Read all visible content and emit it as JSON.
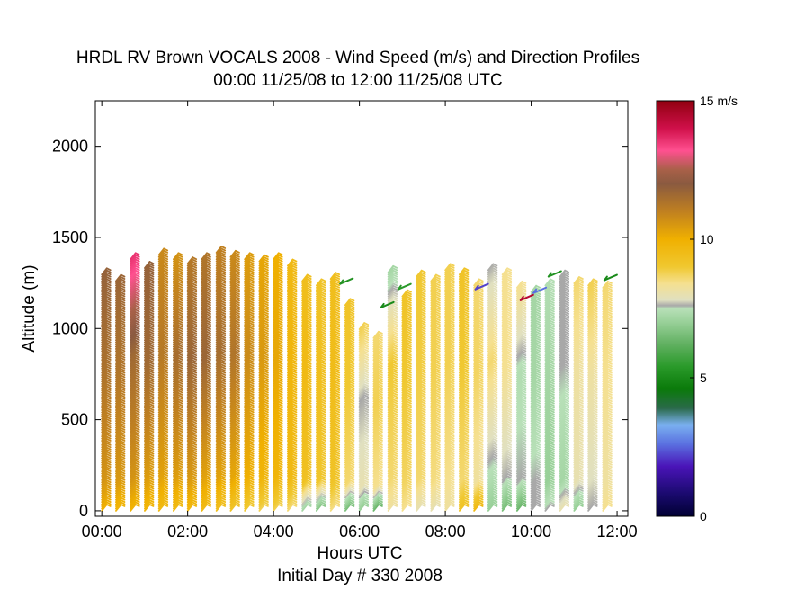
{
  "chart_data": {
    "type": "wind-profile",
    "title_line1": "HRDL RV Brown VOCALS 2008 - Wind Speed (m/s) and Direction Profiles",
    "title_line2": "00:00 11/25/08 to 12:00 11/25/08  UTC",
    "xlabel": "Hours UTC",
    "xlabel2": "Initial Day # 330  2008",
    "ylabel": "Altitude (m)",
    "x_range_hours": [
      -0.15,
      12.25
    ],
    "y_range_m": [
      -30,
      2250
    ],
    "x_ticks": [
      {
        "hour": 0,
        "label": "00:00"
      },
      {
        "hour": 2,
        "label": "02:00"
      },
      {
        "hour": 4,
        "label": "04:00"
      },
      {
        "hour": 6,
        "label": "06:00"
      },
      {
        "hour": 8,
        "label": "08:00"
      },
      {
        "hour": 10,
        "label": "10:00"
      },
      {
        "hour": 12,
        "label": "12:00"
      }
    ],
    "y_ticks": [
      {
        "value": 0,
        "label": "0"
      },
      {
        "value": 500,
        "label": "500"
      },
      {
        "value": 1000,
        "label": "1000"
      },
      {
        "value": 1500,
        "label": "1500"
      },
      {
        "value": 2000,
        "label": "2000"
      }
    ],
    "colorbar": {
      "range_ms": [
        0,
        15
      ],
      "ticks": [
        {
          "value": 15,
          "label": "15 m/s"
        },
        {
          "value": 10,
          "label": "10"
        },
        {
          "value": 5,
          "label": "5"
        },
        {
          "value": 0,
          "label": "0"
        }
      ],
      "stops": [
        {
          "v": 0.0,
          "color": "#000033"
        },
        {
          "v": 0.8,
          "color": "#1a0a6e"
        },
        {
          "v": 1.8,
          "color": "#4a14b8"
        },
        {
          "v": 2.6,
          "color": "#5a70e0"
        },
        {
          "v": 3.3,
          "color": "#7ab0f0"
        },
        {
          "v": 3.9,
          "color": "#2a6a4a"
        },
        {
          "v": 4.6,
          "color": "#0a7a0a"
        },
        {
          "v": 5.4,
          "color": "#2a9a2a"
        },
        {
          "v": 6.2,
          "color": "#60b060"
        },
        {
          "v": 7.0,
          "color": "#98d098"
        },
        {
          "v": 7.5,
          "color": "#b8e0b8"
        },
        {
          "v": 7.6,
          "color": "#a8a8a8"
        },
        {
          "v": 7.8,
          "color": "#e0e0c0"
        },
        {
          "v": 8.4,
          "color": "#f5e090"
        },
        {
          "v": 9.0,
          "color": "#f0c830"
        },
        {
          "v": 10.0,
          "color": "#f0b000"
        },
        {
          "v": 11.0,
          "color": "#c08020"
        },
        {
          "v": 12.0,
          "color": "#8a5a40"
        },
        {
          "v": 12.5,
          "color": "#a86048"
        },
        {
          "v": 13.2,
          "color": "#ff5090"
        },
        {
          "v": 14.0,
          "color": "#d0104a"
        },
        {
          "v": 15.0,
          "color": "#900010"
        }
      ]
    },
    "profiles": [
      {
        "hour": 0.0,
        "top": 1300,
        "upper_speed": 11.8,
        "mid_speed": 11.4,
        "low_speed": 10.6,
        "surface_speed": 10.0
      },
      {
        "hour": 0.33,
        "top": 1270,
        "upper_speed": 11.7,
        "mid_speed": 11.3,
        "low_speed": 10.5,
        "surface_speed": 9.8
      },
      {
        "hour": 0.67,
        "top": 1390,
        "upper_speed": 13.6,
        "mid_speed": 11.6,
        "low_speed": 10.6,
        "surface_speed": 9.9
      },
      {
        "hour": 1.0,
        "top": 1340,
        "upper_speed": 11.8,
        "mid_speed": 11.6,
        "low_speed": 10.4,
        "surface_speed": 9.8
      },
      {
        "hour": 1.33,
        "top": 1410,
        "upper_speed": 10.8,
        "mid_speed": 11.2,
        "low_speed": 10.3,
        "surface_speed": 9.6
      },
      {
        "hour": 1.67,
        "top": 1390,
        "upper_speed": 10.6,
        "mid_speed": 11.5,
        "low_speed": 10.4,
        "surface_speed": 9.6
      },
      {
        "hour": 2.0,
        "top": 1360,
        "upper_speed": 11.2,
        "mid_speed": 11.7,
        "low_speed": 10.5,
        "surface_speed": 9.7
      },
      {
        "hour": 2.33,
        "top": 1380,
        "upper_speed": 11.3,
        "mid_speed": 11.7,
        "low_speed": 10.3,
        "surface_speed": 9.6
      },
      {
        "hour": 2.67,
        "top": 1420,
        "upper_speed": 11.0,
        "mid_speed": 11.5,
        "low_speed": 10.3,
        "surface_speed": 9.4
      },
      {
        "hour": 3.0,
        "top": 1400,
        "upper_speed": 10.8,
        "mid_speed": 11.3,
        "low_speed": 10.2,
        "surface_speed": 9.2
      },
      {
        "hour": 3.33,
        "top": 1390,
        "upper_speed": 10.4,
        "mid_speed": 10.8,
        "low_speed": 10.0,
        "surface_speed": 9.0
      },
      {
        "hour": 3.67,
        "top": 1370,
        "upper_speed": 10.2,
        "mid_speed": 10.5,
        "low_speed": 9.8,
        "surface_speed": 8.8
      },
      {
        "hour": 4.0,
        "top": 1380,
        "upper_speed": 10.0,
        "mid_speed": 10.2,
        "low_speed": 9.8,
        "surface_speed": 8.8
      },
      {
        "hour": 4.33,
        "top": 1350,
        "upper_speed": 9.6,
        "mid_speed": 9.8,
        "low_speed": 9.6,
        "surface_speed": 8.6
      },
      {
        "hour": 4.67,
        "top": 1260,
        "upper_speed": 9.4,
        "mid_speed": 9.6,
        "low_speed": 9.3,
        "surface_speed": 7.2
      },
      {
        "hour": 5.0,
        "top": 1240,
        "upper_speed": 9.2,
        "mid_speed": 9.4,
        "low_speed": 9.1,
        "surface_speed": 6.8
      },
      {
        "hour": 5.33,
        "top": 1280,
        "upper_speed": 9.4,
        "mid_speed": 9.5,
        "low_speed": 9.2,
        "surface_speed": 8.5
      },
      {
        "hour": 5.67,
        "top": 1130,
        "upper_speed": 9.2,
        "mid_speed": 9.0,
        "low_speed": 8.6,
        "surface_speed": 6.6
      },
      {
        "hour": 6.0,
        "top": 1000,
        "upper_speed": 8.8,
        "mid_speed": 7.6,
        "low_speed": 8.0,
        "surface_speed": 7.0
      },
      {
        "hour": 6.33,
        "top": 950,
        "upper_speed": 8.6,
        "mid_speed": 8.8,
        "low_speed": 8.4,
        "surface_speed": 6.4
      },
      {
        "hour": 6.67,
        "top": 1310,
        "upper_speed": 7.2,
        "mid_speed": 9.0,
        "low_speed": 8.6,
        "surface_speed": 8.2
      },
      {
        "hour": 7.0,
        "top": 1180,
        "upper_speed": 9.2,
        "mid_speed": 9.0,
        "low_speed": 8.7,
        "surface_speed": 8.4
      },
      {
        "hour": 7.33,
        "top": 1290,
        "upper_speed": 9.0,
        "mid_speed": 8.9,
        "low_speed": 8.6,
        "surface_speed": 8.0
      },
      {
        "hour": 7.67,
        "top": 1260,
        "upper_speed": 8.8,
        "mid_speed": 8.8,
        "low_speed": 8.5,
        "surface_speed": 8.0
      },
      {
        "hour": 8.0,
        "top": 1320,
        "upper_speed": 8.8,
        "mid_speed": 8.8,
        "low_speed": 8.4,
        "surface_speed": 8.2
      },
      {
        "hour": 8.33,
        "top": 1300,
        "upper_speed": 9.2,
        "mid_speed": 9.0,
        "low_speed": 8.6,
        "surface_speed": 9.2
      },
      {
        "hour": 8.67,
        "top": 1240,
        "upper_speed": 8.6,
        "mid_speed": 8.7,
        "low_speed": 8.2,
        "surface_speed": 9.6
      },
      {
        "hour": 9.0,
        "top": 1330,
        "upper_speed": 7.6,
        "mid_speed": 8.6,
        "low_speed": 7.4,
        "surface_speed": 7.0
      },
      {
        "hour": 9.33,
        "top": 1300,
        "upper_speed": 8.4,
        "mid_speed": 8.4,
        "low_speed": 7.6,
        "surface_speed": 6.6
      },
      {
        "hour": 9.67,
        "top": 1230,
        "upper_speed": 8.4,
        "mid_speed": 7.4,
        "low_speed": 7.6,
        "surface_speed": 6.4
      },
      {
        "hour": 10.0,
        "top": 1200,
        "upper_speed": 7.2,
        "mid_speed": 7.2,
        "low_speed": 7.6,
        "surface_speed": 7.6
      },
      {
        "hour": 10.33,
        "top": 1240,
        "upper_speed": 7.4,
        "mid_speed": 7.2,
        "low_speed": 7.0,
        "surface_speed": 7.6
      },
      {
        "hour": 10.67,
        "top": 1290,
        "upper_speed": 7.6,
        "mid_speed": 7.6,
        "low_speed": 7.2,
        "surface_speed": 8.0
      },
      {
        "hour": 11.0,
        "top": 1250,
        "upper_speed": 8.6,
        "mid_speed": 8.2,
        "low_speed": 8.0,
        "surface_speed": 7.0
      },
      {
        "hour": 11.33,
        "top": 1240,
        "upper_speed": 8.8,
        "mid_speed": 8.2,
        "low_speed": 7.8,
        "surface_speed": 7.6
      },
      {
        "hour": 11.67,
        "top": 1230,
        "upper_speed": 8.6,
        "mid_speed": 8.4,
        "low_speed": 8.2,
        "surface_speed": 8.4
      }
    ],
    "isolated_barbs": [
      {
        "hour": 5.7,
        "alt": 1260,
        "speed": 5.2
      },
      {
        "hour": 6.65,
        "alt": 1130,
        "speed": 5.0
      },
      {
        "hour": 7.05,
        "alt": 1230,
        "speed": 5.4
      },
      {
        "hour": 8.85,
        "alt": 1230,
        "speed": 2.2
      },
      {
        "hour": 9.9,
        "alt": 1170,
        "speed": 14.4
      },
      {
        "hour": 10.2,
        "alt": 1210,
        "speed": 2.6
      },
      {
        "hour": 10.55,
        "alt": 1300,
        "speed": 5.2
      },
      {
        "hour": 11.85,
        "alt": 1280,
        "speed": 5.0
      }
    ]
  }
}
